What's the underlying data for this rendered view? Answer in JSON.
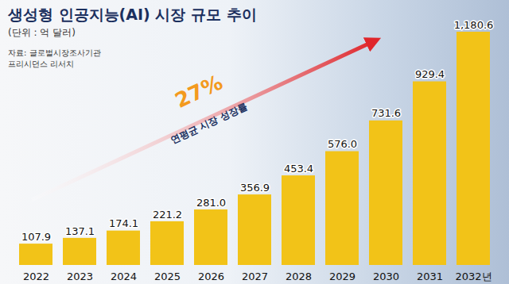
{
  "chart_data": {
    "type": "bar",
    "title": "생성형 인공지능(AI) 시장 규모 추이",
    "subtitle": "(단위 : 억 달러)",
    "source": "자료: 글로벌시장조사기관 프리시던스 리서치",
    "annotations": [
      "27%",
      "연평균 시장 성장률"
    ],
    "categories": [
      "2022",
      "2023",
      "2024",
      "2025",
      "2026",
      "2027",
      "2028",
      "2029",
      "2030",
      "2031",
      "2032년"
    ],
    "values": [
      107.9,
      137.1,
      174.1,
      221.2,
      281.0,
      356.9,
      453.4,
      576.0,
      731.6,
      929.4,
      1180.6
    ],
    "value_labels": [
      "107.9",
      "137.1",
      "174.1",
      "221.2",
      "281.0",
      "356.9",
      "453.4",
      "576.0",
      "731.6",
      "929.4",
      "1,180.6"
    ],
    "color": "#f2c318",
    "data_labels": true,
    "tick_labels": "x",
    "grid": false
  }
}
